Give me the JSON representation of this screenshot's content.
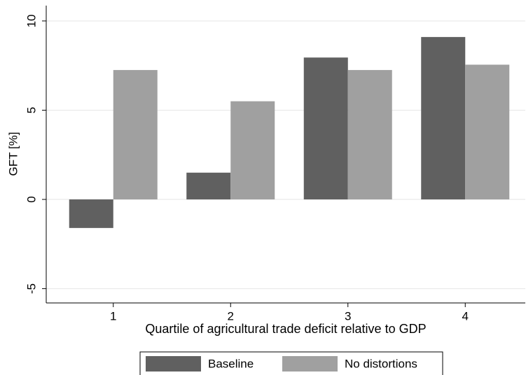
{
  "chart_data": {
    "type": "bar",
    "xlabel": "Quartile of agricultural trade deficit relative to GDP",
    "ylabel": "GFT [%]",
    "categories": [
      "1",
      "2",
      "3",
      "4"
    ],
    "series": [
      {
        "name": "Baseline",
        "color": "#606060",
        "values": [
          -1.6,
          1.5,
          7.95,
          9.1
        ]
      },
      {
        "name": "No distortions",
        "color": "#a0a0a0",
        "values": [
          7.25,
          5.5,
          7.25,
          7.55
        ]
      }
    ],
    "ylim": [
      -5.8,
      10.86
    ],
    "yticks": [
      -5,
      0,
      5,
      10
    ],
    "grid": true,
    "legend": "bottom"
  }
}
